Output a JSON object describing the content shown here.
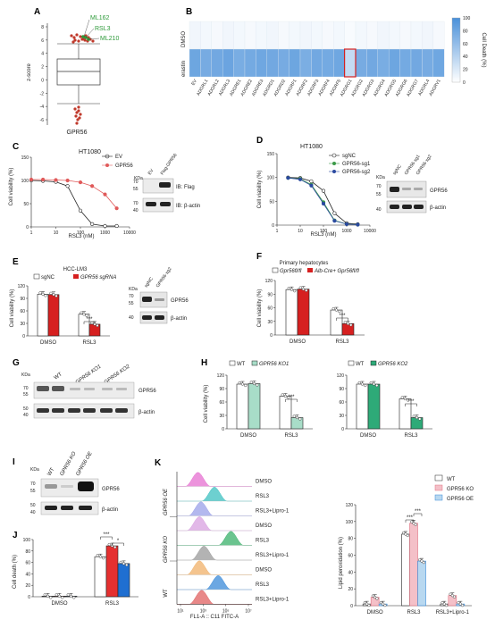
{
  "panels": {
    "A": {
      "label": "A",
      "ylabel": "z-score",
      "yticks": [
        "8",
        "6",
        "4",
        "2",
        "0",
        "-2",
        "-4",
        "-6"
      ],
      "hits": [
        "ML162",
        "RSL3",
        "ML210"
      ],
      "xlabel": "GPR56",
      "hit_color": "#2e9b3a",
      "dot_color": "#c0392b"
    },
    "B": {
      "label": "B",
      "rows": [
        "DMSO",
        "erastin"
      ],
      "cols": [
        "EV",
        "ADGRL1",
        "ADGRL2",
        "ADGRL3",
        "ADGRE1",
        "ADGRE2",
        "ADGRE3",
        "ADGRD1",
        "ADGRD2",
        "ADGRF1",
        "ADGRF2",
        "ADGRF3",
        "ADGRF4",
        "ADGRF5",
        "ADGRG1",
        "ADGRG2",
        "ADGRG3",
        "ADGRG4",
        "ADGRG5",
        "ADGRG6",
        "ADGRG7",
        "ADGRL4",
        "ADGRV1"
      ],
      "highlight_col": "ADGRG1",
      "colorbar_title": "Cell Death (%)",
      "colorbar_ticks": [
        "100",
        "80",
        "60",
        "40",
        "20",
        "0"
      ],
      "values_dmso": [
        6,
        5,
        4,
        6,
        5,
        4,
        5,
        6,
        4,
        5,
        6,
        5,
        4,
        5,
        3,
        5,
        4,
        6,
        5,
        4,
        5,
        6,
        4
      ],
      "values_erastin": [
        62,
        58,
        60,
        63,
        57,
        59,
        61,
        60,
        58,
        62,
        56,
        60,
        59,
        61,
        25,
        58,
        60,
        57,
        62,
        59,
        60,
        58,
        61
      ]
    },
    "C": {
      "label": "C",
      "title": "HT1080",
      "ylabel": "Cell viability (%)",
      "xlabel": "RSL3 (nM)",
      "yticks": [
        "0",
        "50",
        "100",
        "150"
      ],
      "xticks": [
        "1",
        "10",
        "100",
        "1000",
        "10000"
      ],
      "legend": [
        "EV",
        "GPR56"
      ],
      "blot_lanes": [
        "EV",
        "Flag-GPR56"
      ],
      "blot_kda_label": "KDa",
      "blot_kda": [
        "70",
        "55",
        "70",
        "40"
      ],
      "blot_labels": [
        "IB: Flag",
        "IB: β-actin"
      ]
    },
    "D": {
      "label": "D",
      "title": "HT1080",
      "ylabel": "Cell viability (%)",
      "xlabel": "RSL3 (nM)",
      "yticks": [
        "0",
        "50",
        "100",
        "150"
      ],
      "xticks": [
        "1",
        "10",
        "100",
        "1000",
        "10000"
      ],
      "legend": [
        "sgNC",
        "GPR56-sg1",
        "GPR56-sg2"
      ],
      "blot_lanes": [
        "sgNC",
        "GPR56-sg1",
        "GPR56-sg2"
      ],
      "blot_kda_label": "KDa",
      "blot_kda": [
        "70",
        "55",
        "40"
      ],
      "blot_labels": [
        "GPR56",
        "β-actin"
      ]
    },
    "E": {
      "label": "E",
      "title": "HCC-LM3",
      "ylabel": "Cell viability (%)",
      "legend": [
        "sgNC",
        "GPR56 sgRNA"
      ],
      "yticks": [
        "0",
        "30",
        "60",
        "90",
        "120"
      ],
      "groups": [
        "DMSO",
        "RSL3"
      ],
      "sig": "***",
      "blot_lanes": [
        "sgNC",
        "GPR56-sg2"
      ],
      "blot_kda_label": "KDa",
      "blot_kda": [
        "70",
        "55",
        "40"
      ],
      "blot_labels": [
        "GPR56",
        "β-actin"
      ]
    },
    "F": {
      "label": "F",
      "title": "Primary hepatocytes",
      "ylabel": "Cell viability (%)",
      "legend": [
        "Gpr56fl/fl",
        "Alb-Cre+ Gpr56fl/fl"
      ],
      "yticks": [
        "0",
        "30",
        "60",
        "90",
        "120"
      ],
      "groups": [
        "DMSO",
        "RSL3"
      ],
      "sig": "***"
    },
    "G": {
      "label": "G",
      "kda_label": "KDa",
      "kda": [
        "70",
        "55",
        "50",
        "40"
      ],
      "lanes": [
        "WT",
        "GPR56 KO1",
        "GPR56 KO2"
      ],
      "blot_labels": [
        "GPR56",
        "β-actin"
      ]
    },
    "H": {
      "label": "H",
      "ylabel": "Cell viability (%)",
      "legend_left": [
        "WT",
        "GPR56 KO1"
      ],
      "legend_right": [
        "WT",
        "GPR56 KO2"
      ],
      "yticks": [
        "0",
        "30",
        "60",
        "90",
        "120"
      ],
      "groups": [
        "DMSO",
        "RSL3"
      ],
      "sig": "***"
    },
    "I": {
      "label": "I",
      "kda_label": "KDa",
      "kda": [
        "70",
        "55",
        "50",
        "40"
      ],
      "lanes": [
        "WT",
        "GPR56 KO",
        "GPR56 OE"
      ],
      "blot_labels": [
        "GPR56",
        "β-actin"
      ]
    },
    "J": {
      "label": "J",
      "ylabel": "Cell death (%)",
      "yticks": [
        "0",
        "20",
        "40",
        "60",
        "80",
        "100"
      ],
      "groups": [
        "DMSO",
        "RSL3"
      ],
      "sig": [
        "***",
        "*"
      ]
    },
    "K": {
      "label": "K",
      "group_labels": [
        "GPR56 OE",
        "GPR56 KO",
        "WT"
      ],
      "histo_rows": [
        "DMSO",
        "RSL3",
        "RSL3+Lipro-1",
        "DMSO",
        "RSL3",
        "RSL3+Lipro-1",
        "DMSO",
        "RSL3",
        "RSL3+Lipro-1"
      ],
      "xlabel": "FL1-A :: C11 FITC-A",
      "xticks": [
        "10¹",
        "10³",
        "10⁵",
        "10⁷"
      ],
      "bar_ylabel": "Lipid peroxidation (%)",
      "bar_yticks": [
        "0",
        "20",
        "40",
        "60",
        "80",
        "100",
        "120"
      ],
      "bar_groups": [
        "DMSO",
        "RSL3",
        "RSL3+Lipro-1"
      ],
      "bar_legend": [
        "WT",
        "GPR56 KO",
        "GPR56 OE"
      ],
      "sig": [
        "***",
        "***"
      ]
    }
  },
  "chart_data": [
    {
      "panel": "C",
      "type": "line",
      "title": "HT1080",
      "xlabel": "RSL3 (nM)",
      "ylabel": "Cell viability (%)",
      "xscale": "log",
      "xlim": [
        1,
        10000
      ],
      "ylim": [
        0,
        150
      ],
      "x": [
        1,
        3,
        10,
        30,
        100,
        300,
        1000,
        3000
      ],
      "series": [
        {
          "name": "EV",
          "color": "#222222",
          "values": [
            100,
            99,
            97,
            88,
            35,
            6,
            2,
            2
          ]
        },
        {
          "name": "GPR56",
          "color": "#e05a5a",
          "values": [
            102,
            102,
            101,
            100,
            96,
            88,
            70,
            40
          ]
        }
      ]
    },
    {
      "panel": "D",
      "type": "line",
      "title": "HT1080",
      "xlabel": "RSL3 (nM)",
      "ylabel": "Cell viability (%)",
      "xscale": "log",
      "xlim": [
        1,
        10000
      ],
      "ylim": [
        0,
        150
      ],
      "x": [
        3,
        10,
        30,
        100,
        300,
        1000,
        3000
      ],
      "series": [
        {
          "name": "sgNC",
          "color": "#222222",
          "values": [
            100,
            99,
            92,
            72,
            25,
            4,
            2
          ]
        },
        {
          "name": "GPR56-sg1",
          "color": "#3a9a48",
          "values": [
            99,
            97,
            85,
            48,
            10,
            2,
            1
          ]
        },
        {
          "name": "GPR56-sg2",
          "color": "#2b4aa0",
          "values": [
            99,
            96,
            83,
            45,
            9,
            2,
            1
          ]
        }
      ]
    },
    {
      "panel": "E",
      "type": "bar",
      "title": "HCC-LM3",
      "ylabel": "Cell viability (%)",
      "ylim": [
        0,
        120
      ],
      "categories": [
        "DMSO",
        "RSL3"
      ],
      "series": [
        {
          "name": "sgNC",
          "color": "#ffffff",
          "values": [
            100,
            52
          ]
        },
        {
          "name": "GPR56 sgRNA",
          "color": "#d62020",
          "values": [
            99,
            28
          ]
        }
      ]
    },
    {
      "panel": "F",
      "type": "bar",
      "title": "Primary hepatocytes",
      "ylabel": "Cell viability (%)",
      "ylim": [
        0,
        120
      ],
      "categories": [
        "DMSO",
        "RSL3"
      ],
      "series": [
        {
          "name": "Gpr56fl/fl",
          "color": "#ffffff",
          "values": [
            100,
            55
          ]
        },
        {
          "name": "Alb-Cre+ Gpr56fl/fl",
          "color": "#d62020",
          "values": [
            101,
            25
          ]
        }
      ]
    },
    {
      "panel": "H-left",
      "type": "bar",
      "ylabel": "Cell viability (%)",
      "ylim": [
        0,
        120
      ],
      "categories": [
        "DMSO",
        "RSL3"
      ],
      "series": [
        {
          "name": "WT",
          "color": "#ffffff",
          "values": [
            100,
            73
          ]
        },
        {
          "name": "GPR56 KO1",
          "color": "#a8ddc8",
          "values": [
            101,
            25
          ]
        }
      ]
    },
    {
      "panel": "H-right",
      "type": "bar",
      "ylim": [
        0,
        120
      ],
      "categories": [
        "DMSO",
        "RSL3"
      ],
      "series": [
        {
          "name": "WT",
          "color": "#ffffff",
          "values": [
            100,
            67
          ]
        },
        {
          "name": "GPR56 KO2",
          "color": "#2eaa78",
          "values": [
            100,
            25
          ]
        }
      ]
    },
    {
      "panel": "J",
      "type": "bar",
      "ylabel": "Cell death (%)",
      "ylim": [
        0,
        100
      ],
      "categories": [
        "DMSO",
        "RSL3"
      ],
      "series": [
        {
          "name": "WT",
          "color": "#ffffff",
          "values": [
            1,
            70
          ]
        },
        {
          "name": "GPR56 KO",
          "color": "#e53030",
          "values": [
            1,
            89
          ]
        },
        {
          "name": "GPR56 OE",
          "color": "#1f6fd1",
          "values": [
            1,
            58
          ]
        }
      ]
    },
    {
      "panel": "K-bar",
      "type": "bar",
      "ylabel": "Lipid peroxidation (%)",
      "ylim": [
        0,
        120
      ],
      "categories": [
        "DMSO",
        "RSL3",
        "RSL3+Lipro-1"
      ],
      "series": [
        {
          "name": "WT",
          "color": "#ffffff",
          "values": [
            2,
            85,
            2
          ]
        },
        {
          "name": "GPR56 KO",
          "color": "#f4c0c8",
          "values": [
            10,
            98,
            12
          ]
        },
        {
          "name": "GPR56 OE",
          "color": "#b8d8f0",
          "values": [
            2,
            53,
            2
          ]
        }
      ]
    }
  ],
  "colors": {
    "heat_high": "#4a90d9",
    "heat_low": "#ffffff",
    "highlight": "#d42020",
    "histo_colors": [
      "#e66fd0",
      "#3cc0c0",
      "#9aa0e8",
      "#d8a0e0",
      "#3ab06a",
      "#9a9a9a",
      "#f0b068",
      "#3a8ad8",
      "#e06060"
    ]
  }
}
